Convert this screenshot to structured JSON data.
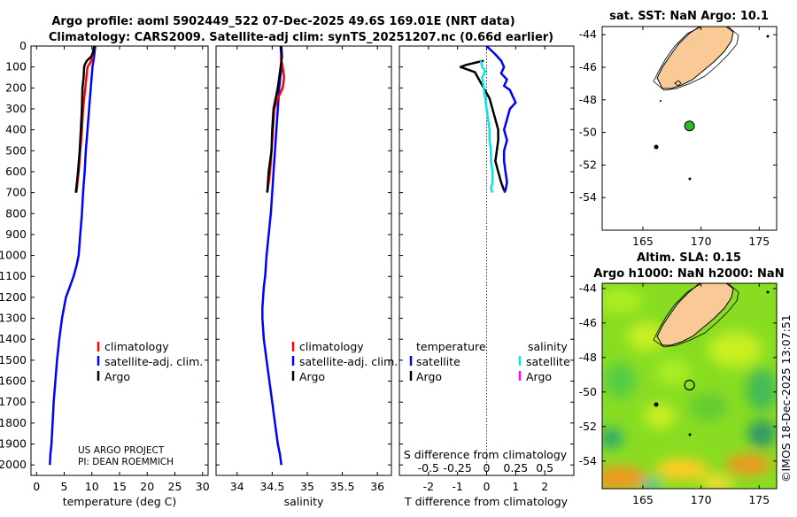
{
  "title_line1": "Argo profile: aoml 5902449_522 07-Dec-2025 49.6S 169.01E (NRT data)",
  "title_line2": "Climatology: CARS2009. Satellite-adj clim: synTS_20251207.nc (0.66d earlier)",
  "credit": "©IMOS 18-Dec-2025 13:07:51",
  "project_line1": "US ARGO PROJECT",
  "project_line2": "PI: DEAN ROEMMICH",
  "colors": {
    "climatology": "#ff0000",
    "satellite": "#0000ff",
    "argo": "#000000",
    "sat_diff": "#00e5ee",
    "argo_s_diff": "#ff00ff",
    "land": "#f9c996"
  },
  "chart_data": [
    {
      "type": "line",
      "name": "temperature",
      "xlabel": "temperature (deg C)",
      "xlim": [
        -1,
        31
      ],
      "ylim": [
        0,
        2050
      ],
      "xticks": [
        "0",
        "5",
        "10",
        "15",
        "20",
        "25",
        "30"
      ],
      "xtick_values": [
        0,
        5,
        10,
        15,
        20,
        25,
        30
      ],
      "yticks": [
        "0",
        "100",
        "200",
        "300",
        "400",
        "500",
        "600",
        "700",
        "800",
        "900",
        "1000",
        "1100",
        "1200",
        "1300",
        "1400",
        "1500",
        "1600",
        "1700",
        "1800",
        "1900",
        "2000"
      ],
      "ytick_values": [
        0,
        100,
        200,
        300,
        400,
        500,
        600,
        700,
        800,
        900,
        1000,
        1100,
        1200,
        1300,
        1400,
        1500,
        1600,
        1700,
        1800,
        1900,
        2000
      ],
      "legend": [
        "climatology",
        "satellite-adj. clim.",
        "Argo"
      ],
      "series": [
        {
          "name": "satellite-adj. clim.",
          "color": "#0000ff",
          "x": [
            10.6,
            10.4,
            10.1,
            9.8,
            9.5,
            9.2,
            8.9,
            8.7,
            8.4,
            8.2,
            7.9,
            7.6,
            7.2,
            6.7,
            6.0,
            5.3,
            4.6,
            4.1,
            3.7,
            3.4,
            3.1,
            2.9,
            2.7,
            2.5,
            2.4
          ],
          "y": [
            0,
            50,
            100,
            200,
            300,
            400,
            500,
            600,
            700,
            800,
            900,
            1000,
            1050,
            1100,
            1150,
            1200,
            1300,
            1400,
            1500,
            1600,
            1700,
            1800,
            1900,
            1950,
            2000
          ]
        },
        {
          "name": "climatology",
          "color": "#ff0000",
          "x": [
            10.2,
            9.7,
            9.2,
            9.0,
            8.8,
            8.6,
            8.4,
            8.2,
            7.9,
            7.6,
            7.4,
            7.2
          ],
          "y": [
            50,
            80,
            100,
            150,
            200,
            250,
            300,
            400,
            500,
            600,
            650,
            700
          ]
        },
        {
          "name": "Argo",
          "color": "#000000",
          "x": [
            10.4,
            10.2,
            9.9,
            9.1,
            8.7,
            8.6,
            8.5,
            8.3,
            8.2,
            8.0,
            7.8,
            7.5,
            7.3,
            7.1
          ],
          "y": [
            0,
            30,
            50,
            70,
            90,
            100,
            150,
            200,
            300,
            400,
            500,
            600,
            650,
            700
          ]
        }
      ]
    },
    {
      "type": "line",
      "name": "salinity",
      "xlabel": "salinity",
      "xlim": [
        33.7,
        36.2
      ],
      "ylim": [
        0,
        2050
      ],
      "xticks": [
        "34",
        "34.5",
        "35",
        "35.5",
        "36"
      ],
      "xtick_values": [
        34,
        34.5,
        35,
        35.5,
        36
      ],
      "legend": [
        "climatology",
        "satellite-adj. clim.",
        "Argo"
      ],
      "series": [
        {
          "name": "satellite-adj. clim.",
          "color": "#0000ff",
          "x": [
            34.62,
            34.63,
            34.63,
            34.6,
            34.58,
            34.56,
            34.54,
            34.52,
            34.5,
            34.48,
            34.45,
            34.42,
            34.4,
            34.38,
            34.37,
            34.36,
            34.36,
            34.38,
            34.42,
            34.46,
            34.5,
            34.54,
            34.58,
            34.61,
            34.63
          ],
          "y": [
            0,
            50,
            100,
            200,
            300,
            400,
            500,
            600,
            700,
            800,
            900,
            1000,
            1100,
            1150,
            1200,
            1250,
            1300,
            1400,
            1500,
            1600,
            1700,
            1800,
            1900,
            1950,
            2000
          ]
        },
        {
          "name": "climatology",
          "color": "#ff0000",
          "x": [
            34.62,
            34.65,
            34.67,
            34.65,
            34.58,
            34.53,
            34.51,
            34.49,
            34.47,
            34.45,
            34.43
          ],
          "y": [
            50,
            100,
            150,
            200,
            250,
            300,
            400,
            500,
            600,
            650,
            700
          ]
        },
        {
          "name": "Argo",
          "color": "#000000",
          "x": [
            34.63,
            34.64,
            34.62,
            34.6,
            34.58,
            34.55,
            34.52,
            34.5,
            34.49,
            34.47,
            34.45,
            34.43
          ],
          "y": [
            0,
            50,
            100,
            150,
            200,
            250,
            300,
            400,
            500,
            550,
            600,
            700
          ]
        }
      ]
    },
    {
      "type": "line",
      "name": "difference",
      "xlabel": "T difference from climatology",
      "xlabel_top": "S difference from climatology",
      "xlim": [
        -3,
        3
      ],
      "ylim": [
        0,
        2050
      ],
      "xticks": [
        "-2",
        "-1",
        "0",
        "1",
        "2"
      ],
      "xtick_values": [
        -2,
        -1,
        0,
        1,
        2
      ],
      "s_xticks": [
        "-0.5",
        "-0.25",
        "0",
        "0.25",
        "0.5"
      ],
      "legend_headers": [
        "temperature",
        "salinity"
      ],
      "legend_left": [
        "satellite",
        "Argo"
      ],
      "legend_right": [
        "satellite",
        "Argo"
      ],
      "series": [
        {
          "name": "satellite T diff",
          "color": "#0000ff",
          "x": [
            0.0,
            0.3,
            0.5,
            0.6,
            0.5,
            0.7,
            0.6,
            0.8,
            0.9,
            1.0,
            0.8,
            0.7,
            0.6,
            0.7,
            0.6,
            0.6,
            0.65,
            0.7,
            0.65,
            0.6
          ],
          "y": [
            0,
            40,
            70,
            100,
            130,
            160,
            190,
            210,
            240,
            270,
            300,
            350,
            400,
            450,
            500,
            550,
            600,
            650,
            690,
            700
          ]
        },
        {
          "name": "Argo T diff",
          "color": "#000000",
          "x": [
            -0.1,
            -0.4,
            -0.7,
            -0.9,
            -0.7,
            -0.4,
            -0.3,
            -0.1,
            0.1,
            0.2,
            0.3,
            0.4,
            0.4,
            0.35,
            0.3,
            0.4,
            0.5,
            0.6
          ],
          "y": [
            70,
            80,
            90,
            100,
            110,
            125,
            150,
            200,
            250,
            300,
            350,
            400,
            450,
            500,
            550,
            600,
            650,
            690
          ]
        },
        {
          "name": "satellite S diff",
          "color": "#00e5ee",
          "x": [
            -0.2,
            -0.15,
            -0.05,
            -0.15,
            -0.1,
            -0.05,
            0.0,
            0.05,
            0.1,
            0.1,
            0.15,
            0.15,
            0.2,
            0.2,
            0.15,
            0.2
          ],
          "y": [
            70,
            100,
            120,
            150,
            200,
            250,
            300,
            350,
            400,
            450,
            500,
            550,
            600,
            650,
            680,
            700
          ]
        }
      ]
    },
    {
      "type": "map",
      "name": "sst_map",
      "title": "sat. SST: NaN Argo: 10.1",
      "xticks": [
        "165",
        "170",
        "175"
      ],
      "xtick_values": [
        165,
        170,
        175
      ],
      "yticks": [
        "-44",
        "-46",
        "-48",
        "-50",
        "-52",
        "-54"
      ],
      "ytick_values": [
        -44,
        -46,
        -48,
        -50,
        -52,
        -54
      ],
      "xlim": [
        161.5,
        176.5
      ],
      "ylim": [
        -56,
        -43.5
      ],
      "float_lon": 169.01,
      "float_lat": -49.6
    },
    {
      "type": "map",
      "name": "sla_map",
      "title_line1": "Altim. SLA: 0.15",
      "title_line2": "Argo h1000: NaN h2000: NaN",
      "xticks": [
        "165",
        "170",
        "175"
      ],
      "xtick_values": [
        165,
        170,
        175
      ],
      "yticks": [
        "-44",
        "-46",
        "-48",
        "-50",
        "-52",
        "-54"
      ],
      "ytick_values": [
        -44,
        -46,
        -48,
        -50,
        -52,
        -54
      ],
      "xlim": [
        161.5,
        176.5
      ],
      "ylim": [
        -55.6,
        -43.7
      ],
      "float_lon": 169.01,
      "float_lat": -49.6
    }
  ]
}
